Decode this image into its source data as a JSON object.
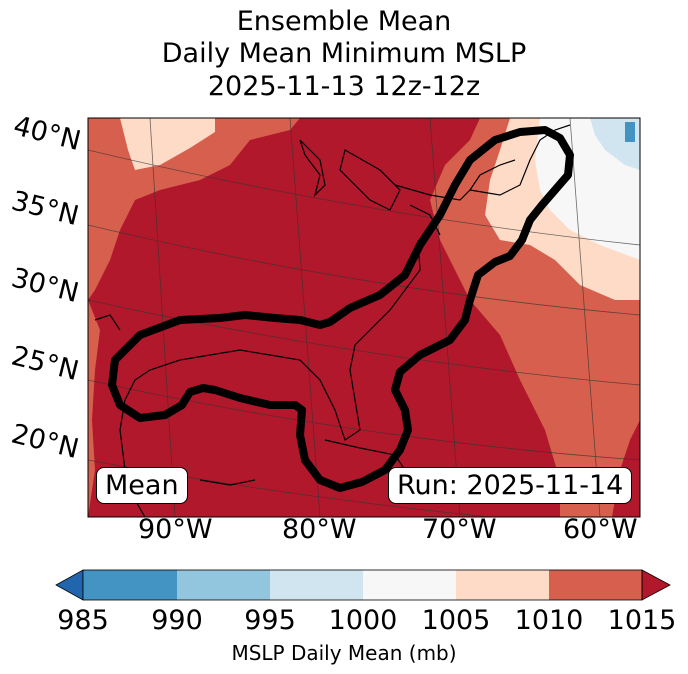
{
  "title": {
    "line1": "Ensemble Mean",
    "line2": "Daily Mean Minimum MSLP",
    "line3": "2025-11-13 12z-12z"
  },
  "lat_labels": [
    "40°N",
    "35°N",
    "30°N",
    "25°N",
    "20°N"
  ],
  "lon_labels": [
    "90°W",
    "80°W",
    "70°W",
    "60°W"
  ],
  "mean_label": "Mean",
  "run_label": "Run: 2025-11-14",
  "colorbar": {
    "label": "MSLP Daily Mean (mb)",
    "ticks": [
      "985",
      "990",
      "995",
      "1000",
      "1005",
      "1010",
      "1015"
    ],
    "colors": [
      "#2166ac",
      "#4393c3",
      "#92c5de",
      "#d1e5f0",
      "#f7f7f7",
      "#fddbc7",
      "#d6604d",
      "#b2182b"
    ]
  },
  "colors": {
    "dark_red": "#b2182b",
    "mid_red": "#d6604d",
    "light_salmon": "#fddbc7",
    "near_white": "#f7f7f7",
    "light_blue": "#d1e5f0",
    "mid_blue": "#4393c3"
  }
}
